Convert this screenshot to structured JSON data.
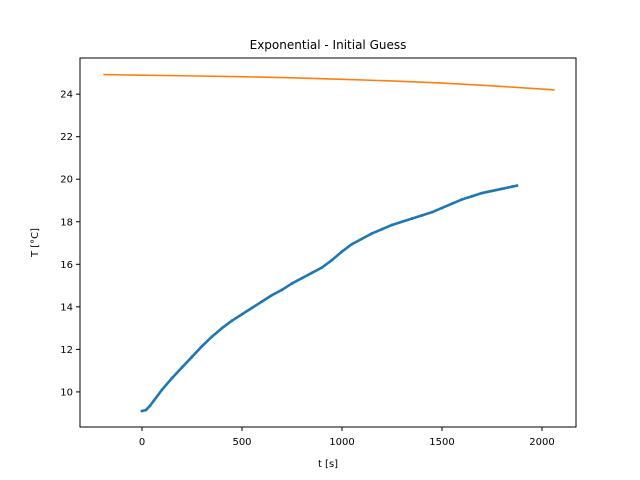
{
  "chart_data": {
    "type": "line",
    "title": "Exponential - Initial Guess",
    "xlabel": "t [s]",
    "ylabel": "T [°C]",
    "xlim": [
      -310,
      2170
    ],
    "ylim": [
      8.35,
      25.7
    ],
    "xticks": [
      0,
      500,
      1000,
      1500,
      2000
    ],
    "yticks": [
      10,
      12,
      14,
      16,
      18,
      20,
      22,
      24
    ],
    "grid": false,
    "series": [
      {
        "color": "#1f77b4",
        "style": "points",
        "x": [
          0,
          20,
          40,
          60,
          80,
          100,
          150,
          200,
          250,
          300,
          350,
          400,
          450,
          500,
          550,
          600,
          650,
          700,
          750,
          800,
          850,
          900,
          950,
          1000,
          1050,
          1100,
          1150,
          1200,
          1250,
          1300,
          1350,
          1400,
          1450,
          1500,
          1550,
          1600,
          1650,
          1700,
          1750,
          1800,
          1850,
          1875
        ],
        "y": [
          9.1,
          9.15,
          9.35,
          9.6,
          9.85,
          10.1,
          10.65,
          11.15,
          11.65,
          12.15,
          12.6,
          13.0,
          13.35,
          13.65,
          13.95,
          14.25,
          14.55,
          14.8,
          15.1,
          15.35,
          15.6,
          15.85,
          16.2,
          16.6,
          16.95,
          17.2,
          17.45,
          17.65,
          17.85,
          18.0,
          18.15,
          18.3,
          18.45,
          18.65,
          18.85,
          19.05,
          19.2,
          19.35,
          19.45,
          19.55,
          19.65,
          19.7
        ]
      },
      {
        "color": "#ff7f0e",
        "style": "line",
        "x": [
          -190,
          0,
          250,
          500,
          750,
          1000,
          1250,
          1500,
          1750,
          2000,
          2060
        ],
        "y": [
          24.92,
          24.89,
          24.86,
          24.82,
          24.77,
          24.7,
          24.62,
          24.52,
          24.39,
          24.24,
          24.2
        ]
      }
    ]
  }
}
